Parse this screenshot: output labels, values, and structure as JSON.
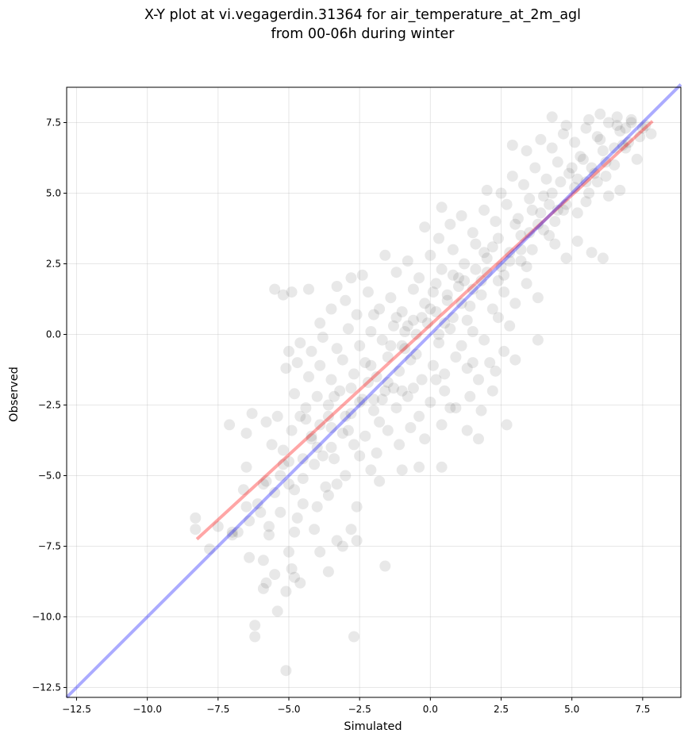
{
  "chart_data": {
    "type": "scatter",
    "title": "X-Y plot at vi.vegagerdin.31364 for air_temperature_at_2m_agl",
    "subtitle": "from 00-06h during winter",
    "xlabel": "Simulated",
    "ylabel": "Observed",
    "xlim": [
      -12.85,
      8.85
    ],
    "ylim": [
      -12.85,
      8.75
    ],
    "xticks": [
      -12.5,
      -10.0,
      -7.5,
      -5.0,
      -2.5,
      0.0,
      2.5,
      5.0,
      7.5
    ],
    "yticks": [
      -12.5,
      -10.0,
      -7.5,
      -5.0,
      -2.5,
      0.0,
      2.5,
      5.0,
      7.5
    ],
    "xtick_labels": [
      "−12.5",
      "−10.0",
      "−7.5",
      "−5.0",
      "−2.5",
      "0.0",
      "2.5",
      "5.0",
      "7.5"
    ],
    "ytick_labels": [
      "−12.5",
      "−10.0",
      "−7.5",
      "−5.0",
      "−2.5",
      "0.0",
      "2.5",
      "5.0",
      "7.5"
    ],
    "grid": true,
    "point_color": "#000000",
    "point_alpha": 0.09,
    "points": [
      [
        -5.1,
        -11.9
      ],
      [
        -6.2,
        -10.7
      ],
      [
        -6.2,
        -10.3
      ],
      [
        -2.7,
        -10.7
      ],
      [
        -5.4,
        -9.8
      ],
      [
        -5.9,
        -9.0
      ],
      [
        -5.1,
        -9.1
      ],
      [
        -5.8,
        -8.8
      ],
      [
        -4.8,
        -8.6
      ],
      [
        -5.5,
        -8.5
      ],
      [
        -4.6,
        -8.8
      ],
      [
        -3.6,
        -8.4
      ],
      [
        -1.6,
        -8.2
      ],
      [
        -6.4,
        -7.9
      ],
      [
        -5.9,
        -8.0
      ],
      [
        -4.9,
        -8.3
      ],
      [
        -5.0,
        -7.7
      ],
      [
        -3.9,
        -7.7
      ],
      [
        -3.3,
        -7.3
      ],
      [
        -3.1,
        -7.5
      ],
      [
        -2.6,
        -7.3
      ],
      [
        -5.7,
        -7.1
      ],
      [
        -4.8,
        -7.0
      ],
      [
        -4.1,
        -6.9
      ],
      [
        -2.8,
        -6.9
      ],
      [
        -8.3,
        -6.5
      ],
      [
        -8.3,
        -6.9
      ],
      [
        -7.5,
        -6.8
      ],
      [
        -7.0,
        -7.0
      ],
      [
        -6.4,
        -6.6
      ],
      [
        -6.6,
        -5.5
      ],
      [
        -6.1,
        -6.0
      ],
      [
        -5.7,
        -6.8
      ],
      [
        -5.3,
        -6.3
      ],
      [
        -4.7,
        -6.5
      ],
      [
        -4.5,
        -6.0
      ],
      [
        -4.0,
        -6.1
      ],
      [
        -3.6,
        -5.7
      ],
      [
        -3.3,
        -5.3
      ],
      [
        -2.6,
        -6.1
      ],
      [
        -6.5,
        -4.7
      ],
      [
        -5.9,
        -5.3
      ],
      [
        -5.3,
        -5.0
      ],
      [
        -5.0,
        -4.5
      ],
      [
        -4.5,
        -5.1
      ],
      [
        -4.1,
        -4.6
      ],
      [
        -3.7,
        -5.4
      ],
      [
        -3.4,
        -4.4
      ],
      [
        -3.0,
        -5.0
      ],
      [
        -2.5,
        -4.3
      ],
      [
        -2.1,
        -4.8
      ],
      [
        -1.8,
        -5.2
      ],
      [
        -1.0,
        -4.8
      ],
      [
        -0.4,
        -4.7
      ],
      [
        0.4,
        -4.7
      ],
      [
        -6.3,
        -2.8
      ],
      [
        -6.5,
        -3.5
      ],
      [
        -5.8,
        -3.1
      ],
      [
        -5.6,
        -3.9
      ],
      [
        -5.2,
        -4.1
      ],
      [
        -4.9,
        -3.4
      ],
      [
        -4.6,
        -2.9
      ],
      [
        -4.2,
        -3.6
      ],
      [
        -3.9,
        -3.2
      ],
      [
        -3.5,
        -4.0
      ],
      [
        -3.1,
        -3.5
      ],
      [
        -2.7,
        -3.9
      ],
      [
        -2.3,
        -3.6
      ],
      [
        -1.9,
        -4.2
      ],
      [
        -1.5,
        -3.4
      ],
      [
        -1.1,
        -3.9
      ],
      [
        -0.7,
        -3.3
      ],
      [
        -0.2,
        -3.7
      ],
      [
        0.4,
        -3.2
      ],
      [
        1.3,
        -3.4
      ],
      [
        1.7,
        -3.7
      ],
      [
        2.7,
        -3.2
      ],
      [
        -7.1,
        -3.2
      ],
      [
        -5.4,
        -2.9
      ],
      [
        -4.8,
        -2.1
      ],
      [
        -4.4,
        -2.6
      ],
      [
        -4.0,
        -2.2
      ],
      [
        -3.6,
        -2.5
      ],
      [
        -3.2,
        -2.0
      ],
      [
        -2.8,
        -2.8
      ],
      [
        -2.4,
        -2.3
      ],
      [
        -2.0,
        -2.7
      ],
      [
        -1.6,
        -2.0
      ],
      [
        -1.2,
        -2.6
      ],
      [
        -0.8,
        -2.2
      ],
      [
        -0.4,
        -2.9
      ],
      [
        0.0,
        -2.4
      ],
      [
        0.5,
        -2.0
      ],
      [
        0.9,
        -2.6
      ],
      [
        1.4,
        -2.2
      ],
      [
        1.8,
        -2.7
      ],
      [
        2.2,
        -2.0
      ],
      [
        -5.1,
        -1.2
      ],
      [
        -4.7,
        -1.0
      ],
      [
        -4.3,
        -1.5
      ],
      [
        -3.9,
        -1.1
      ],
      [
        -3.5,
        -1.6
      ],
      [
        -3.1,
        -0.9
      ],
      [
        -2.7,
        -1.4
      ],
      [
        -2.3,
        -1.0
      ],
      [
        -1.9,
        -1.5
      ],
      [
        -1.5,
        -0.8
      ],
      [
        -1.1,
        -1.3
      ],
      [
        -0.7,
        -0.9
      ],
      [
        -0.3,
        -1.6
      ],
      [
        0.1,
        -1.1
      ],
      [
        0.5,
        -1.4
      ],
      [
        0.9,
        -0.8
      ],
      [
        1.3,
        -1.2
      ],
      [
        1.7,
        -1.6
      ],
      [
        2.1,
        -1.0
      ],
      [
        2.6,
        -0.6
      ],
      [
        3.0,
        -0.9
      ],
      [
        3.8,
        -0.2
      ],
      [
        -5.0,
        -0.6
      ],
      [
        -4.6,
        -0.3
      ],
      [
        -4.2,
        -0.6
      ],
      [
        -3.8,
        -0.1
      ],
      [
        -3.3,
        -0.5
      ],
      [
        -2.9,
        0.2
      ],
      [
        -2.5,
        -0.4
      ],
      [
        -2.1,
        0.1
      ],
      [
        -1.7,
        -0.2
      ],
      [
        -1.3,
        0.3
      ],
      [
        -0.9,
        -0.5
      ],
      [
        -0.5,
        0.0
      ],
      [
        -0.1,
        0.4
      ],
      [
        0.3,
        -0.3
      ],
      [
        0.7,
        0.2
      ],
      [
        1.1,
        -0.4
      ],
      [
        1.5,
        0.1
      ],
      [
        1.9,
        -0.2
      ],
      [
        2.4,
        0.6
      ],
      [
        2.8,
        0.3
      ],
      [
        -5.5,
        1.6
      ],
      [
        -5.2,
        1.4
      ],
      [
        -4.9,
        1.5
      ],
      [
        -4.3,
        1.6
      ],
      [
        -3.9,
        0.4
      ],
      [
        -3.5,
        0.9
      ],
      [
        -3.0,
        1.2
      ],
      [
        -2.6,
        0.7
      ],
      [
        -2.2,
        1.5
      ],
      [
        -1.8,
        0.9
      ],
      [
        -1.4,
        1.3
      ],
      [
        -1.0,
        0.8
      ],
      [
        -0.6,
        1.6
      ],
      [
        -0.2,
        1.1
      ],
      [
        0.2,
        1.8
      ],
      [
        0.6,
        1.2
      ],
      [
        1.0,
        1.7
      ],
      [
        1.4,
        1.0
      ],
      [
        1.8,
        1.4
      ],
      [
        2.2,
        0.9
      ],
      [
        2.6,
        1.5
      ],
      [
        3.0,
        1.1
      ],
      [
        3.4,
        1.8
      ],
      [
        3.8,
        1.3
      ],
      [
        -3.3,
        1.7
      ],
      [
        -2.8,
        2.0
      ],
      [
        -2.4,
        2.1
      ],
      [
        -1.6,
        2.8
      ],
      [
        -1.2,
        2.2
      ],
      [
        -0.8,
        2.6
      ],
      [
        -0.4,
        2.0
      ],
      [
        0.0,
        2.8
      ],
      [
        0.4,
        2.3
      ],
      [
        0.8,
        3.0
      ],
      [
        1.2,
        2.5
      ],
      [
        1.6,
        3.2
      ],
      [
        2.0,
        2.7
      ],
      [
        2.4,
        3.4
      ],
      [
        2.8,
        2.9
      ],
      [
        3.2,
        3.5
      ],
      [
        3.6,
        3.0
      ],
      [
        4.0,
        3.7
      ],
      [
        4.4,
        3.2
      ],
      [
        4.8,
        2.7
      ],
      [
        5.2,
        3.3
      ],
      [
        5.7,
        2.9
      ],
      [
        6.1,
        2.7
      ],
      [
        -0.2,
        3.8
      ],
      [
        0.3,
        3.4
      ],
      [
        0.7,
        3.9
      ],
      [
        1.1,
        4.2
      ],
      [
        1.5,
        3.6
      ],
      [
        1.9,
        4.4
      ],
      [
        2.3,
        4.0
      ],
      [
        2.7,
        4.6
      ],
      [
        3.1,
        4.1
      ],
      [
        3.5,
        4.8
      ],
      [
        3.9,
        4.3
      ],
      [
        4.3,
        5.0
      ],
      [
        4.7,
        4.4
      ],
      [
        5.1,
        5.2
      ],
      [
        5.5,
        4.7
      ],
      [
        5.9,
        5.4
      ],
      [
        6.3,
        4.9
      ],
      [
        6.7,
        5.1
      ],
      [
        0.4,
        4.5
      ],
      [
        2.0,
        5.1
      ],
      [
        2.5,
        5.0
      ],
      [
        2.9,
        5.6
      ],
      [
        3.3,
        5.3
      ],
      [
        3.7,
        5.9
      ],
      [
        4.1,
        5.5
      ],
      [
        4.5,
        6.1
      ],
      [
        4.9,
        5.7
      ],
      [
        5.3,
        6.3
      ],
      [
        5.7,
        5.9
      ],
      [
        6.1,
        6.5
      ],
      [
        6.5,
        6.0
      ],
      [
        6.9,
        6.6
      ],
      [
        7.3,
        6.2
      ],
      [
        2.9,
        6.7
      ],
      [
        3.4,
        6.5
      ],
      [
        3.9,
        6.9
      ],
      [
        4.3,
        6.6
      ],
      [
        4.7,
        7.1
      ],
      [
        5.1,
        6.8
      ],
      [
        5.5,
        7.3
      ],
      [
        5.9,
        7.0
      ],
      [
        6.3,
        7.5
      ],
      [
        6.7,
        7.2
      ],
      [
        7.1,
        7.6
      ],
      [
        7.5,
        7.3
      ],
      [
        7.8,
        7.1
      ],
      [
        4.3,
        7.7
      ],
      [
        5.6,
        7.6
      ],
      [
        6.0,
        7.8
      ],
      [
        6.6,
        7.7
      ],
      [
        7.1,
        7.5
      ],
      [
        4.8,
        7.4
      ],
      [
        -2.0,
        0.7
      ],
      [
        -1.8,
        -3.1
      ],
      [
        0.0,
        0.9
      ],
      [
        1.0,
        2.0
      ],
      [
        2.0,
        2.2
      ],
      [
        3.0,
        3.9
      ],
      [
        4.0,
        4.9
      ],
      [
        5.0,
        5.9
      ],
      [
        6.0,
        6.9
      ],
      [
        -1.0,
        -0.4
      ],
      [
        -2.0,
        -2.3
      ],
      [
        -3.0,
        -2.9
      ],
      [
        -4.0,
        -4.0
      ],
      [
        -5.0,
        -5.3
      ],
      [
        -6.0,
        -6.3
      ],
      [
        -7.0,
        -7.1
      ],
      [
        0.5,
        0.4
      ],
      [
        1.5,
        1.6
      ],
      [
        2.5,
        2.4
      ],
      [
        3.5,
        3.6
      ],
      [
        4.5,
        4.4
      ],
      [
        5.5,
        5.4
      ],
      [
        6.5,
        6.6
      ],
      [
        -0.5,
        -0.7
      ],
      [
        -1.5,
        -1.7
      ],
      [
        -2.5,
        -2.4
      ],
      [
        -3.5,
        -3.3
      ],
      [
        -4.5,
        -4.4
      ],
      [
        -5.5,
        -5.6
      ],
      [
        -6.5,
        -6.1
      ],
      [
        0.8,
        0.6
      ],
      [
        1.8,
        1.9
      ],
      [
        2.8,
        2.6
      ],
      [
        3.8,
        3.9
      ],
      [
        4.8,
        4.6
      ],
      [
        5.8,
        5.7
      ],
      [
        6.8,
        6.7
      ],
      [
        -0.8,
        0.3
      ],
      [
        -1.2,
        0.6
      ],
      [
        -0.6,
        0.5
      ],
      [
        0.2,
        0.8
      ],
      [
        1.6,
        2.3
      ],
      [
        2.2,
        3.1
      ],
      [
        3.2,
        2.6
      ],
      [
        4.2,
        3.5
      ],
      [
        5.2,
        4.3
      ],
      [
        6.2,
        5.6
      ],
      [
        -2.2,
        -1.7
      ],
      [
        -2.8,
        -1.9
      ],
      [
        -3.6,
        -2.9
      ],
      [
        -4.2,
        -3.7
      ],
      [
        -5.2,
        -4.6
      ],
      [
        -5.8,
        -5.2
      ],
      [
        -6.8,
        -7.0
      ],
      [
        -7.8,
        -7.6
      ],
      [
        0.6,
        1.4
      ],
      [
        1.2,
        1.9
      ],
      [
        0.8,
        2.1
      ],
      [
        1.9,
        2.9
      ],
      [
        3.6,
        4.4
      ],
      [
        4.6,
        5.4
      ],
      [
        5.4,
        6.2
      ],
      [
        6.6,
        7.4
      ],
      [
        7.0,
        6.8
      ],
      [
        7.4,
        7.0
      ],
      [
        -1.4,
        -0.4
      ],
      [
        -0.9,
        0.1
      ],
      [
        -0.3,
        0.6
      ],
      [
        0.1,
        1.5
      ],
      [
        1.1,
        1.1
      ],
      [
        2.6,
        2.1
      ],
      [
        3.4,
        2.4
      ],
      [
        4.4,
        4.0
      ],
      [
        5.6,
        5.0
      ],
      [
        -3.8,
        -4.3
      ],
      [
        -4.8,
        -5.5
      ],
      [
        -2.9,
        -3.4
      ],
      [
        -1.7,
        -2.3
      ],
      [
        -0.6,
        -1.9
      ],
      [
        -1.0,
        -2.0
      ],
      [
        0.2,
        -1.6
      ],
      [
        0.7,
        -2.6
      ],
      [
        1.5,
        -1.0
      ],
      [
        2.3,
        -1.3
      ],
      [
        -4.4,
        -3.0
      ],
      [
        -3.4,
        -2.2
      ],
      [
        -2.1,
        -1.1
      ],
      [
        -1.3,
        -1.9
      ],
      [
        0.3,
        0.0
      ],
      [
        1.3,
        0.5
      ],
      [
        2.4,
        1.9
      ],
      [
        3.2,
        3.0
      ],
      [
        4.2,
        4.6
      ],
      [
        5.2,
        5.5
      ],
      [
        6.2,
        6.1
      ],
      [
        6.9,
        7.3
      ],
      [
        7.6,
        7.4
      ]
    ],
    "lines": [
      {
        "color": "#ff0000",
        "alpha": 0.35,
        "x": [
          -8.25,
          7.85
        ],
        "y": [
          -7.25,
          7.55
        ]
      },
      {
        "color": "#0000ff",
        "alpha": 0.33,
        "x": [
          -12.85,
          8.85
        ],
        "y": [
          -12.85,
          8.85
        ]
      }
    ]
  }
}
